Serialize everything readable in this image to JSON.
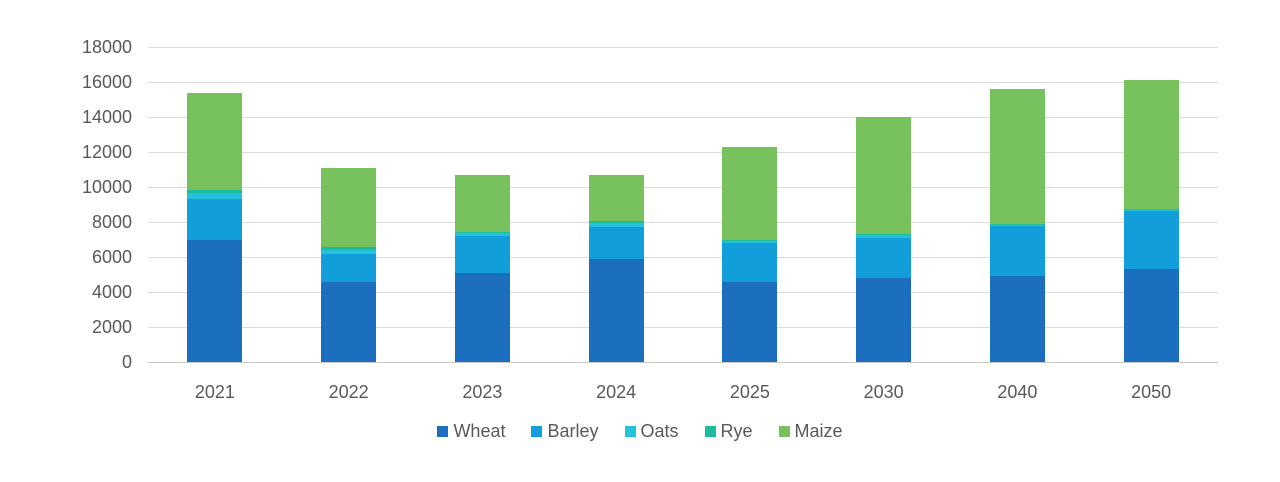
{
  "chart_data": {
    "type": "bar",
    "stacked": true,
    "title": "",
    "xlabel": "",
    "ylabel": "",
    "categories": [
      "2021",
      "2022",
      "2023",
      "2024",
      "2025",
      "2030",
      "2040",
      "2050"
    ],
    "series": [
      {
        "name": "Wheat",
        "color": "#1C6EBF",
        "values": [
          7000,
          4600,
          5100,
          5900,
          4600,
          4800,
          4900,
          5300
        ]
      },
      {
        "name": "Barley",
        "color": "#129DDB",
        "values": [
          2300,
          1600,
          2100,
          1800,
          2200,
          2300,
          2900,
          3350
        ]
      },
      {
        "name": "Oats",
        "color": "#26C2DB",
        "values": [
          330,
          200,
          180,
          250,
          130,
          130,
          40,
          40
        ]
      },
      {
        "name": "Rye",
        "color": "#1CBD9D",
        "values": [
          220,
          200,
          70,
          100,
          70,
          70,
          30,
          30
        ]
      },
      {
        "name": "Maize",
        "color": "#77C25D",
        "values": [
          5550,
          4500,
          3250,
          2650,
          5300,
          6700,
          7730,
          7380
        ]
      }
    ],
    "ylim": [
      0,
      18000
    ],
    "ytick_step": 2000,
    "ytick_labels": [
      "0",
      "2000",
      "4000",
      "6000",
      "8000",
      "10000",
      "12000",
      "14000",
      "16000",
      "18000"
    ],
    "grid": true,
    "legend_position": "bottom",
    "legend_labels": [
      "Wheat",
      "Barley",
      "Oats",
      "Rye",
      "Maize"
    ]
  },
  "styles": {
    "background": "#FFFFFF",
    "grid_color": "#DBDBDB",
    "axis_line_color": "#C9C9C9",
    "tick_text_color": "#595959"
  }
}
